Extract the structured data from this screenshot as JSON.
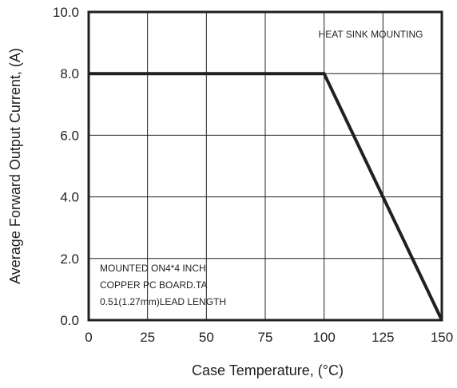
{
  "chart_data": {
    "type": "line",
    "title": "",
    "xlabel": "Case Temperature, (°C)",
    "ylabel": "Average Forward Output Current, (A)",
    "xlim": [
      0,
      150
    ],
    "ylim": [
      0,
      10
    ],
    "x_ticks": [
      0,
      25,
      50,
      75,
      100,
      125,
      150
    ],
    "x_tick_labels": [
      "0",
      "25",
      "50",
      "75",
      "100",
      "125",
      "150"
    ],
    "y_ticks": [
      0,
      2,
      4,
      6,
      8,
      10
    ],
    "y_tick_labels": [
      "0.0",
      "2.0",
      "4.0",
      "6.0",
      "8.0",
      "10.0"
    ],
    "grid": true,
    "series": [
      {
        "x": [
          0,
          100,
          150
        ],
        "y": [
          8.0,
          8.0,
          0.0
        ]
      }
    ],
    "annotations": {
      "heat_sink": "HEAT SINK MOUNTING",
      "pc_board": [
        "MOUNTED ON4*4 INCH",
        "COPPER PC BOARD.TA",
        "0.51(1.27mm)LEAD LENGTH"
      ]
    },
    "colors": {
      "line": "#231f20",
      "grid": "#231f20",
      "frame": "#231f20"
    }
  }
}
